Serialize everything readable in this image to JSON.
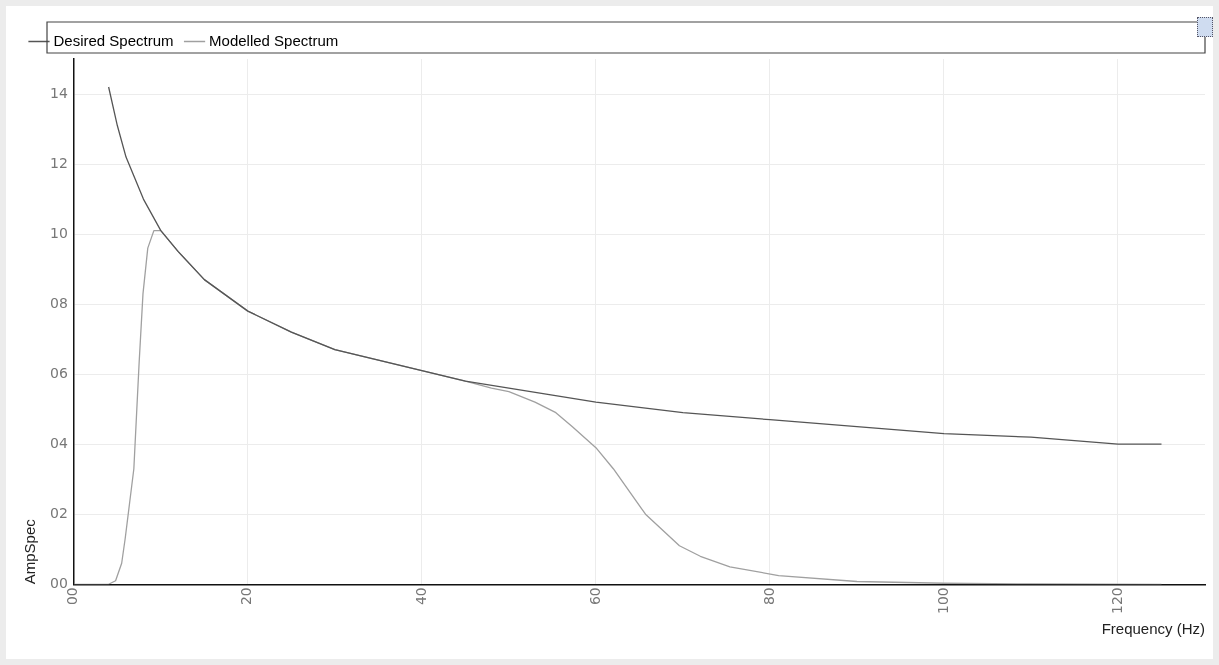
{
  "chart_data": {
    "type": "line",
    "xlabel": "Frequency (Hz)",
    "ylabel": "AmpSpec",
    "xlim": [
      0,
      130
    ],
    "xticks": [
      {
        "value": 0,
        "label": "00"
      },
      20,
      40,
      60,
      80,
      100,
      120
    ],
    "ylim": [
      0,
      15
    ],
    "yticks": [
      {
        "value": 0,
        "label": "00"
      },
      {
        "value": 2,
        "label": "02"
      },
      {
        "value": 4,
        "label": "04"
      },
      {
        "value": 6,
        "label": "06"
      },
      {
        "value": 8,
        "label": "08"
      },
      10,
      12,
      14
    ],
    "grid": true,
    "legend": "top",
    "marker": "none",
    "line_style": "solid",
    "series": [
      {
        "name": "Desired Spectrum",
        "color": "#555555",
        "x": [
          4,
          5,
          6,
          7,
          8,
          10,
          12,
          15,
          20,
          25,
          30,
          35,
          40,
          45,
          50,
          55,
          60,
          70,
          80,
          90,
          100,
          110,
          120,
          125
        ],
        "values": [
          14.2,
          13.1,
          12.2,
          11.6,
          11.0,
          10.1,
          9.5,
          8.7,
          7.8,
          7.2,
          6.7,
          6.4,
          6.1,
          5.8,
          5.6,
          5.4,
          5.2,
          4.9,
          4.7,
          4.5,
          4.3,
          4.2,
          4.0,
          4.0
        ]
      },
      {
        "name": "Modelled Spectrum",
        "color": "#a0a0a0",
        "x": [
          0,
          4,
          4.8,
          5.5,
          5.9,
          6.4,
          6.9,
          7.5,
          7.95,
          8.5,
          9.2,
          10,
          12,
          15,
          20,
          25,
          30,
          35,
          40,
          45,
          48,
          50,
          53,
          55.4,
          57.3,
          60,
          62,
          65.7,
          69.6,
          72,
          75.4,
          81,
          90,
          100,
          110,
          125
        ],
        "values": [
          0,
          0,
          0.1,
          0.6,
          1.3,
          2.3,
          3.3,
          6.3,
          8.3,
          9.6,
          10.1,
          10.1,
          9.5,
          8.7,
          7.8,
          7.2,
          6.7,
          6.4,
          6.1,
          5.8,
          5.6,
          5.5,
          5.2,
          4.9,
          4.5,
          3.9,
          3.3,
          2.0,
          1.1,
          0.8,
          0.5,
          0.25,
          0.08,
          0.03,
          0.01,
          0
        ]
      }
    ]
  }
}
